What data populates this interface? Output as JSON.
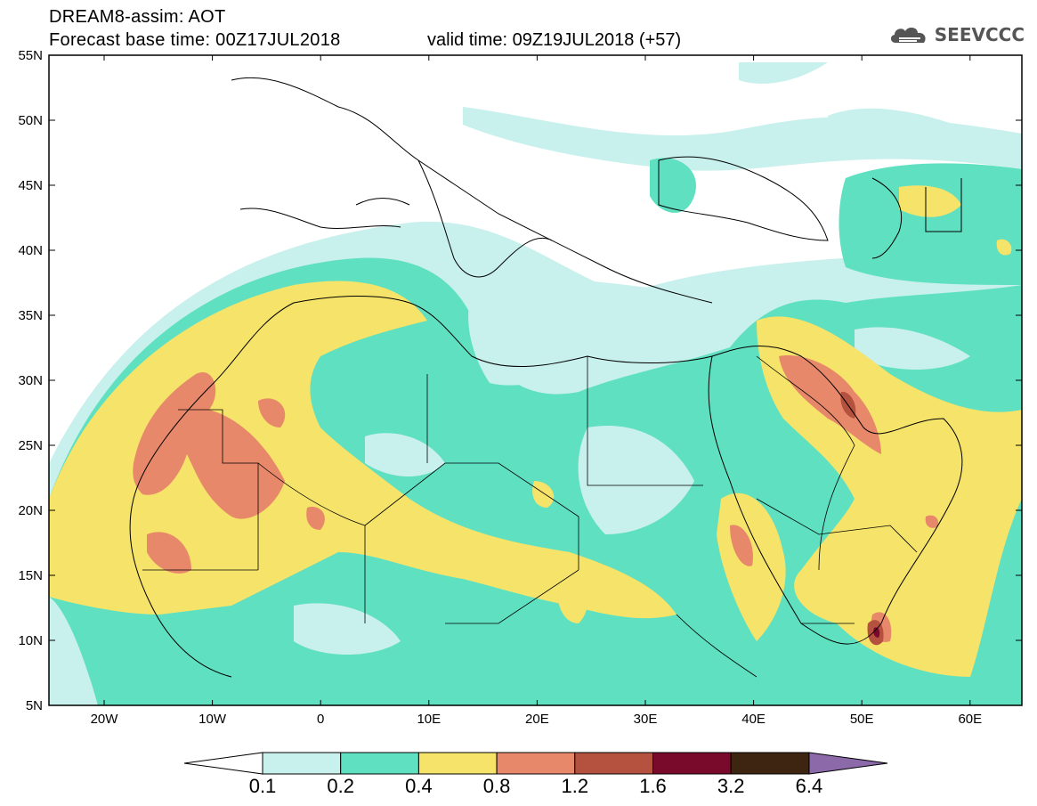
{
  "header": {
    "title_line1": "DREAM8-assim: AOT",
    "title_line2": "Forecast base time: 00Z17JUL2018",
    "valid_time": "valid time: 09Z19JUL2018 (+57)",
    "brand": "SEEVCCC"
  },
  "axes": {
    "lat_labels": [
      "55N",
      "50N",
      "45N",
      "40N",
      "35N",
      "30N",
      "25N",
      "20N",
      "15N",
      "10N",
      "5N"
    ],
    "lon_labels": [
      "20W",
      "10W",
      "0",
      "10E",
      "20E",
      "30E",
      "40E",
      "50E",
      "60E"
    ]
  },
  "colorbar": {
    "labels": [
      "0.1",
      "0.2",
      "0.4",
      "0.8",
      "1.2",
      "1.6",
      "3.2",
      "6.4"
    ],
    "colors": [
      "#c8f0ec",
      "#5fe0c0",
      "#f5e36a",
      "#e8886a",
      "#b5513f",
      "#7a0a2c",
      "#3e2512",
      "#8c6aaa"
    ]
  },
  "colors": {
    "c1": "#c8f0ec",
    "c2": "#5fe0c0",
    "c3": "#f5e36a",
    "c4": "#e8886a",
    "c5": "#b5513f",
    "c6": "#7a0a2c"
  }
}
